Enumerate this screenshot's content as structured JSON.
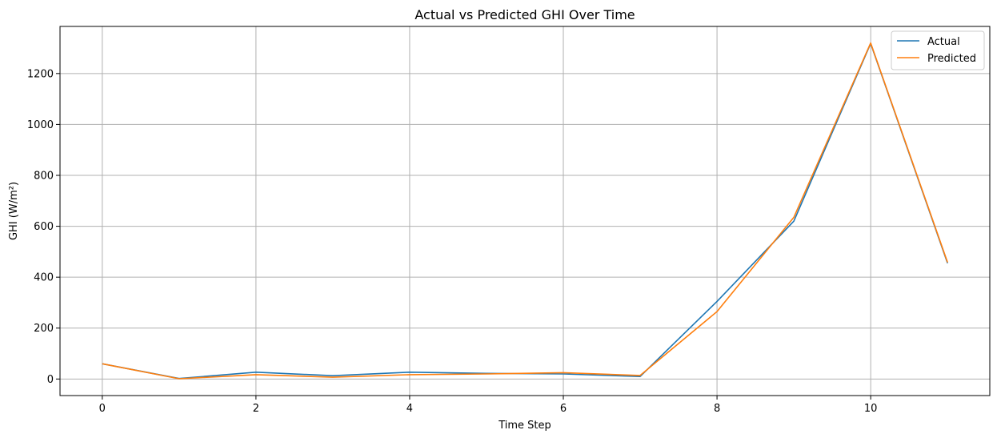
{
  "chart_data": {
    "type": "line",
    "title": "Actual vs Predicted GHI Over Time",
    "xlabel": "Time Step",
    "ylabel": "GHI (W/m²)",
    "xlim": [
      -0.55,
      11.55
    ],
    "ylim": [
      -65,
      1385
    ],
    "x_ticks": [
      0,
      2,
      4,
      6,
      8,
      10
    ],
    "y_ticks": [
      0,
      200,
      400,
      600,
      800,
      1000,
      1200
    ],
    "grid": true,
    "legend_position": "top-right",
    "x": [
      0,
      1,
      2,
      3,
      4,
      5,
      6,
      7,
      8,
      9,
      10,
      11
    ],
    "series": [
      {
        "name": "Actual",
        "color": "#1f77b4",
        "values": [
          60,
          2,
          27,
          13,
          27,
          22,
          20,
          10,
          305,
          620,
          1318,
          455
        ]
      },
      {
        "name": "Predicted",
        "color": "#ff7f0e",
        "values": [
          60,
          1,
          17,
          7,
          17,
          20,
          25,
          14,
          265,
          635,
          1320,
          458
        ]
      }
    ]
  }
}
